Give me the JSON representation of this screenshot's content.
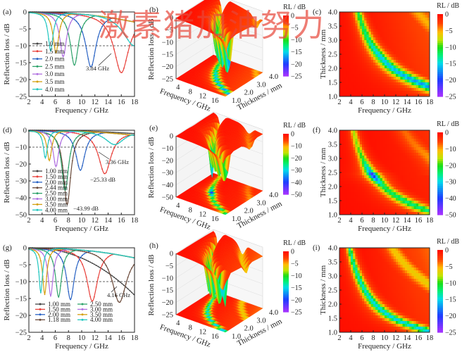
{
  "watermark": "激素猪加油努力",
  "chart_data": [
    {
      "panel": "(a)",
      "type": "line",
      "xlabel": "Frequency / GHz",
      "ylabel": "Reflection loss / dB",
      "xlim": [
        2,
        18
      ],
      "ylim": [
        -25,
        0
      ],
      "xticks": [
        2,
        4,
        6,
        8,
        10,
        12,
        14,
        16,
        18
      ],
      "yticks": [
        0,
        -5,
        -10,
        -15,
        -20,
        -25
      ],
      "reference_line": -10,
      "grid": false,
      "legend": "bottom-left",
      "series": [
        {
          "name": "1.0 mm",
          "color": "#444444",
          "thickness": 1.0,
          "end_rl": -3
        },
        {
          "name": "1.5 mm",
          "color": "#e8403a",
          "thickness": 1.5,
          "min_freq": 16.0,
          "min_rl": -17.3
        },
        {
          "name": "2.0 mm",
          "color": "#2a63c4",
          "thickness": 2.0,
          "min_freq": 11.4,
          "min_rl": -16.0
        },
        {
          "name": "2.5 mm",
          "color": "#2fa36b",
          "thickness": 2.5,
          "min_freq": 8.9,
          "min_rl": -15.6
        },
        {
          "name": "3.0 mm",
          "color": "#b070e0",
          "thickness": 3.0,
          "min_freq": 7.2,
          "min_rl": -13.2
        },
        {
          "name": "3.5 mm",
          "color": "#d4a010",
          "thickness": 3.5,
          "min_freq": 6.1,
          "min_rl": -12.0
        },
        {
          "name": "4.0 mm",
          "color": "#22c7c0",
          "thickness": 4.0,
          "min_freq": 5.3,
          "min_rl": -11.5,
          "second_dip": {
            "freq": 18,
            "rl": -10
          }
        }
      ],
      "annotations": [
        {
          "text": "3.84 GHz"
        }
      ]
    },
    {
      "panel": "(b)",
      "type": "surface",
      "xlabel": "Frequency / GHz",
      "ylabel": "Thickness / mm",
      "zlabel": "Reflection loss / dB",
      "xticks": [
        4,
        8,
        12,
        16
      ],
      "yticks": [
        "1.0",
        "2.0",
        "3.0",
        "4.0"
      ],
      "zticks": [
        0,
        -5,
        -10,
        -15,
        -20,
        -25
      ],
      "zlim": [
        -25,
        0
      ],
      "colorbar_label": "RL / dB",
      "colorbar_ticks": [
        0,
        -5,
        -10,
        -15,
        -20,
        -25
      ],
      "source_panel": "(a)"
    },
    {
      "panel": "(c)",
      "type": "heatmap",
      "xlabel": "Frequency / GHz",
      "ylabel": "Thickness / mm",
      "xlim": [
        2,
        18
      ],
      "ylim": [
        1,
        4
      ],
      "xticks": [
        2,
        4,
        6,
        8,
        10,
        12,
        14,
        16,
        18
      ],
      "yticks": [
        "1.0",
        "1.5",
        "2.0",
        "2.5",
        "3.0",
        "3.5",
        "4.0"
      ],
      "colorbar_label": "RL / dB",
      "colorbar_ticks": [
        0,
        -5,
        -10,
        -15,
        -20,
        -25
      ],
      "zlim": [
        -25,
        0
      ],
      "source_panel": "(a)"
    },
    {
      "panel": "(d)",
      "type": "line",
      "xlabel": "Frequency / GHz",
      "ylabel": "Reflection loss / dB",
      "xlim": [
        2,
        18
      ],
      "ylim": [
        -50,
        0
      ],
      "xticks": [
        2,
        4,
        6,
        8,
        10,
        12,
        14,
        16,
        18
      ],
      "yticks": [
        0,
        -10,
        -20,
        -30,
        -40,
        -50
      ],
      "reference_line": -10,
      "grid": false,
      "legend": "bottom-left",
      "series": [
        {
          "name": "1.00 mm",
          "color": "#444444",
          "thickness": 1.0,
          "end_rl": -2
        },
        {
          "name": "1.50 mm",
          "color": "#e8403a",
          "thickness": 1.5,
          "min_freq": 13.5,
          "min_rl": -25.33
        },
        {
          "name": "2.00 mm",
          "color": "#2a63c4",
          "thickness": 2.0,
          "min_freq": 9.8,
          "min_rl": -23.5
        },
        {
          "name": "2.44 mm",
          "color": "#6b4a3a",
          "thickness": 2.44,
          "min_freq": 7.8,
          "min_rl": -43.99
        },
        {
          "name": "2.50 mm",
          "color": "#2fa36b",
          "thickness": 2.5,
          "min_freq": 7.5,
          "min_rl": -35.5
        },
        {
          "name": "3.00 mm",
          "color": "#b070e0",
          "thickness": 3.0,
          "min_freq": 6.1,
          "min_rl": -21.5
        },
        {
          "name": "3.50 mm",
          "color": "#d4a010",
          "thickness": 3.5,
          "min_freq": 5.1,
          "min_rl": -18.0
        },
        {
          "name": "4.00 mm",
          "color": "#22c7c0",
          "thickness": 4.0,
          "min_freq": 4.5,
          "min_rl": -16.5,
          "second_dip": {
            "freq": 15.0,
            "rl": -8.5
          }
        }
      ],
      "annotations": [
        {
          "text": "3.36 GHz"
        },
        {
          "text": "−25.33 dB"
        },
        {
          "text": "−43.99 dB"
        }
      ]
    },
    {
      "panel": "(e)",
      "type": "surface",
      "xlabel": "Frequency / GHz",
      "ylabel": "Thickness / mm",
      "zlabel": "Reflection loss / dB",
      "xticks": [
        4,
        8,
        12,
        16
      ],
      "yticks": [
        "1.0",
        "2.0",
        "3.0",
        "4.0"
      ],
      "zticks": [
        0,
        -10,
        -20,
        -30,
        -40,
        -50
      ],
      "zlim": [
        -50,
        0
      ],
      "colorbar_label": "RL / dB",
      "colorbar_ticks": [
        0,
        -10,
        -20,
        -30,
        -40,
        -50
      ],
      "source_panel": "(d)"
    },
    {
      "panel": "(f)",
      "type": "heatmap",
      "xlabel": "Frequency / GHz",
      "ylabel": "Thickness / mm",
      "xlim": [
        2,
        18
      ],
      "ylim": [
        1,
        4
      ],
      "xticks": [
        2,
        4,
        6,
        8,
        10,
        12,
        14,
        16,
        18
      ],
      "yticks": [
        "1.0",
        "1.5",
        "2.0",
        "2.5",
        "3.0",
        "3.5",
        "4.0"
      ],
      "colorbar_label": "RL / dB",
      "colorbar_ticks": [
        0,
        -10,
        -20,
        -30,
        -40,
        -50
      ],
      "zlim": [
        -50,
        0
      ],
      "source_panel": "(d)"
    },
    {
      "panel": "(g)",
      "type": "line",
      "xlabel": "Frequency / GHz",
      "ylabel": "Reflection loss / dB",
      "xlim": [
        2,
        18
      ],
      "ylim": [
        -25,
        0
      ],
      "xticks": [
        2,
        4,
        6,
        8,
        10,
        12,
        14,
        16,
        18
      ],
      "yticks": [
        0,
        -5,
        -10,
        -15,
        -20,
        -25
      ],
      "reference_line": -10,
      "grid": false,
      "legend": "bottom",
      "series": [
        {
          "name": "1.00 mm",
          "color": "#444444",
          "thickness": 1.0,
          "end_rl": -14
        },
        {
          "name": "1.50 mm",
          "color": "#e8403a",
          "thickness": 1.5,
          "min_freq": 11.6,
          "min_rl": -15.5
        },
        {
          "name": "2.00 mm",
          "color": "#2a63c4",
          "thickness": 2.0,
          "min_freq": 8.3,
          "min_rl": -15.2
        },
        {
          "name": "1.18 mm",
          "color": "#6b4a3a",
          "thickness": 1.18,
          "min_freq": 15.7,
          "min_rl": -15.5
        },
        {
          "name": "2.50 mm",
          "color": "#2fa36b",
          "thickness": 2.5,
          "min_freq": 6.5,
          "min_rl": -14.5
        },
        {
          "name": "3.00 mm",
          "color": "#b070e0",
          "thickness": 3.0,
          "min_freq": 5.3,
          "min_rl": -14.2
        },
        {
          "name": "3.50 mm",
          "color": "#d4a010",
          "thickness": 3.5,
          "min_freq": 4.4,
          "min_rl": -13.8
        },
        {
          "name": "4.00 mm",
          "color": "#22c7c0",
          "thickness": 4.0,
          "min_freq": 3.8,
          "min_rl": -13.3
        }
      ],
      "annotations": [
        {
          "text": "4.16 GHz"
        }
      ]
    },
    {
      "panel": "(h)",
      "type": "surface",
      "xlabel": "Frequency / GHz",
      "ylabel": "Thickness / mm",
      "zlabel": "Reflection loss / dB",
      "xticks": [
        4,
        8,
        12,
        16
      ],
      "yticks": [
        "1.0",
        "2.0",
        "3.0",
        "4.0"
      ],
      "zticks": [
        0,
        -5,
        -10,
        -15,
        -20,
        -25
      ],
      "zlim": [
        -25,
        0
      ],
      "colorbar_label": "RL / dB",
      "colorbar_ticks": [
        0,
        -5,
        -10,
        -15,
        -20,
        -25
      ],
      "source_panel": "(g)"
    },
    {
      "panel": "(i)",
      "type": "heatmap",
      "xlabel": "Frequency / GHz",
      "ylabel": "Thickness / mm",
      "xlim": [
        2,
        18
      ],
      "ylim": [
        1,
        4
      ],
      "xticks": [
        2,
        4,
        6,
        8,
        10,
        12,
        14,
        16,
        18
      ],
      "yticks": [
        "1.0",
        "1.5",
        "2.0",
        "2.5",
        "3.0",
        "3.5",
        "4.0"
      ],
      "colorbar_label": "RL / dB",
      "colorbar_ticks": [
        0,
        -5,
        -10,
        -15,
        -20,
        -25
      ],
      "zlim": [
        -25,
        0
      ],
      "source_panel": "(g)"
    }
  ]
}
